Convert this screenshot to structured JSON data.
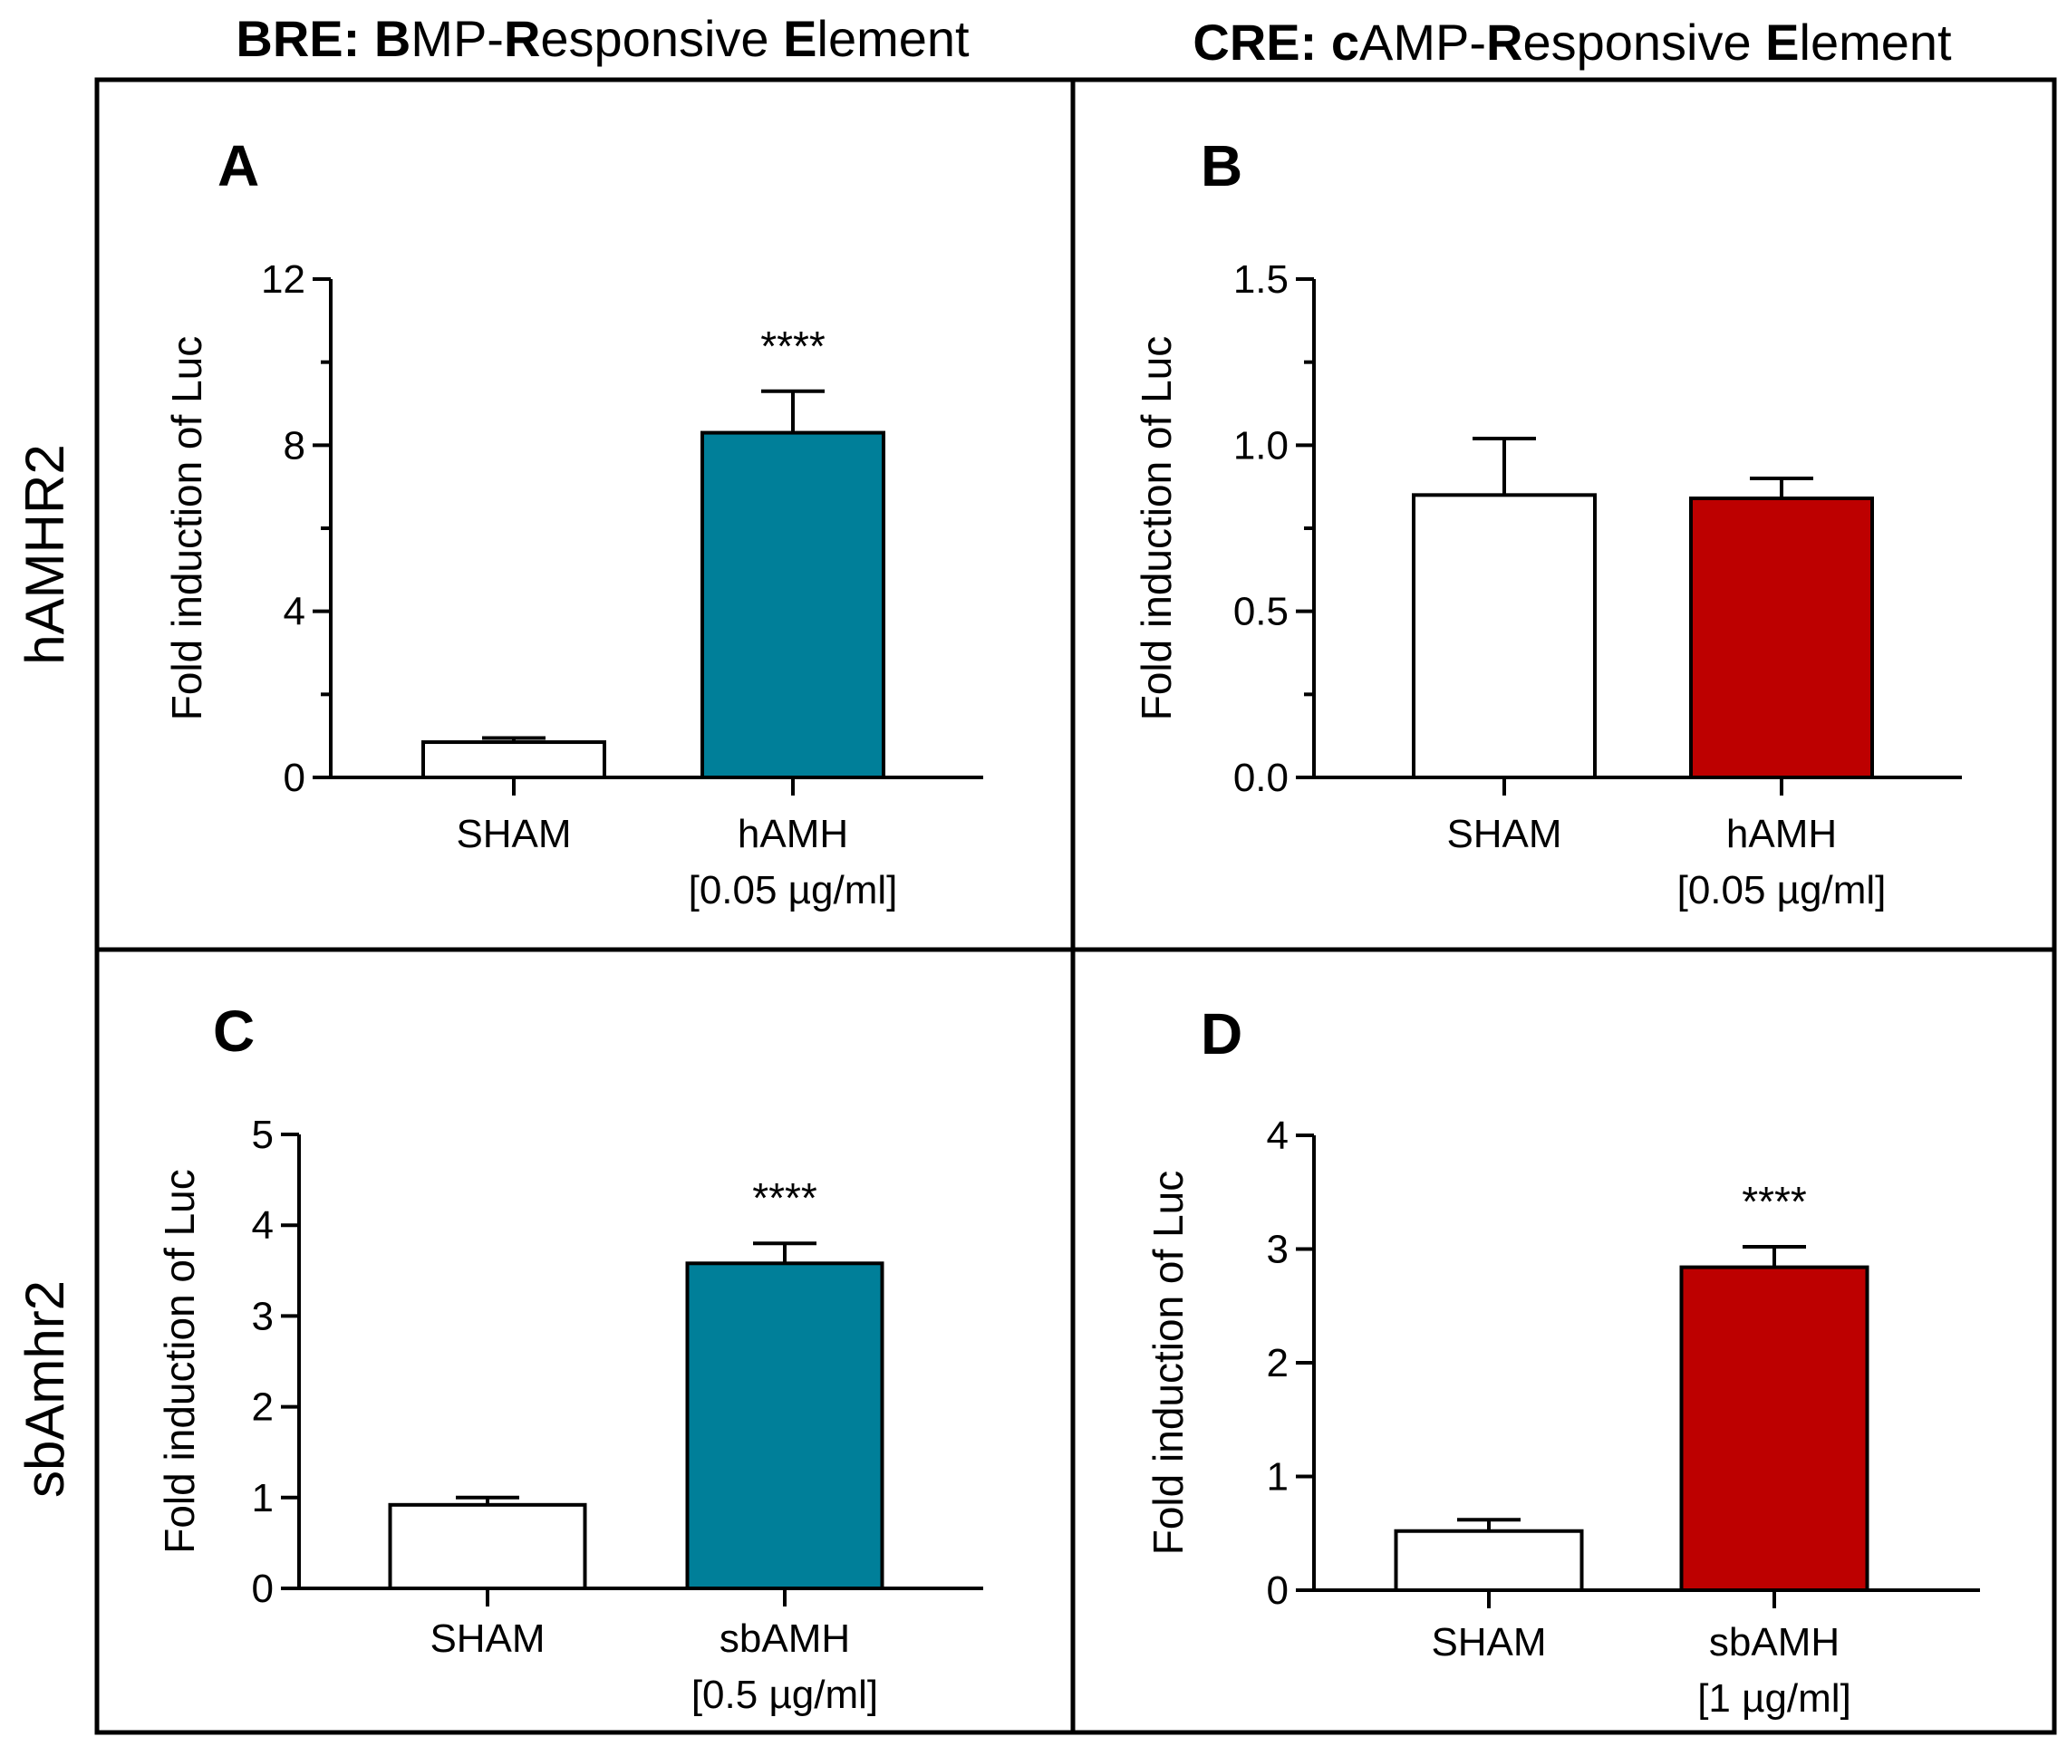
{
  "figure": {
    "col_titles": [
      {
        "runs": [
          {
            "t": "BRE: ",
            "b": true
          },
          {
            "t": "B",
            "b": true
          },
          {
            "t": "MP-",
            "b": false
          },
          {
            "t": "R",
            "b": true
          },
          {
            "t": "esponsive ",
            "b": false
          },
          {
            "t": "E",
            "b": true
          },
          {
            "t": "lement",
            "b": false
          }
        ]
      },
      {
        "runs": [
          {
            "t": "CRE: ",
            "b": true
          },
          {
            "t": "c",
            "b": true
          },
          {
            "t": "AMP-",
            "b": false
          },
          {
            "t": "R",
            "b": true
          },
          {
            "t": "esponsive ",
            "b": false
          },
          {
            "t": "E",
            "b": true
          },
          {
            "t": "lement",
            "b": false
          }
        ]
      }
    ],
    "row_titles": [
      "hAMHR2",
      "sbAmhr2"
    ]
  },
  "colors": {
    "teal": "#007f99",
    "red": "#bd0000",
    "white": "#ffffff",
    "border": "#000000"
  },
  "chart_data": [
    {
      "panel": "A",
      "type": "bar",
      "ylabel": "Fold induction of Luc",
      "ylim": [
        0,
        12
      ],
      "yticks": [
        0,
        4,
        8,
        12
      ],
      "minor_step": 2,
      "categories": [
        [
          "SHAM"
        ],
        [
          "hAMH",
          "[0.05 µg/ml]"
        ]
      ],
      "values": [
        0.85,
        8.3
      ],
      "errors": [
        0.1,
        1.0
      ],
      "fills": [
        "#ffffff",
        "#007f99"
      ],
      "significance": [
        "",
        "****"
      ]
    },
    {
      "panel": "B",
      "type": "bar",
      "ylabel": "Fold induction of Luc",
      "ylim": [
        0,
        1.5
      ],
      "yticks": [
        "0.0",
        "0.5",
        "1.0",
        "1.5"
      ],
      "minor_step": 0.25,
      "categories": [
        [
          "SHAM"
        ],
        [
          "hAMH",
          "[0.05 µg/ml]"
        ]
      ],
      "values": [
        0.85,
        0.84
      ],
      "errors": [
        0.17,
        0.06
      ],
      "fills": [
        "#ffffff",
        "#bd0000"
      ],
      "significance": [
        "",
        ""
      ]
    },
    {
      "panel": "C",
      "type": "bar",
      "ylabel": "Fold induction of Luc",
      "ylim": [
        0,
        5
      ],
      "yticks": [
        0,
        1,
        2,
        3,
        4,
        5
      ],
      "minor_step": 0,
      "categories": [
        [
          "SHAM"
        ],
        [
          "sbAMH",
          "[0.5 µg/ml]"
        ]
      ],
      "values": [
        0.92,
        3.58
      ],
      "errors": [
        0.08,
        0.22
      ],
      "fills": [
        "#ffffff",
        "#007f99"
      ],
      "significance": [
        "",
        "****"
      ]
    },
    {
      "panel": "D",
      "type": "bar",
      "ylabel": "Fold induction of Luc",
      "ylim": [
        0,
        4
      ],
      "yticks": [
        0,
        1,
        2,
        3,
        4
      ],
      "minor_step": 0,
      "categories": [
        [
          "SHAM"
        ],
        [
          "sbAMH",
          "[1 µg/ml]"
        ]
      ],
      "values": [
        0.52,
        2.84
      ],
      "errors": [
        0.1,
        0.18
      ],
      "fills": [
        "#ffffff",
        "#bd0000"
      ],
      "significance": [
        "",
        "****"
      ]
    }
  ]
}
